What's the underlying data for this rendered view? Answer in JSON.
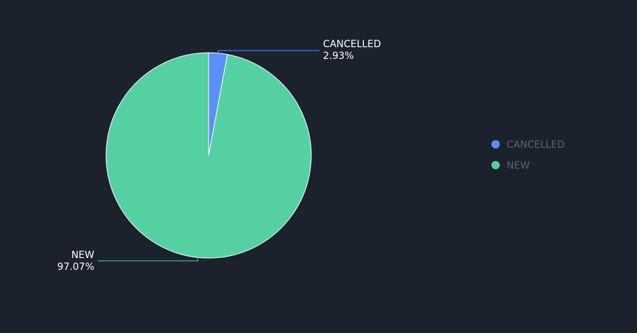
{
  "chart_data": {
    "type": "pie",
    "title": "",
    "categories": [
      "CANCELLED",
      "NEW"
    ],
    "values": [
      2.93,
      97.07
    ],
    "labels": [
      "2.93%",
      "97.07%"
    ],
    "colors": [
      "#5b8ff9",
      "#55d0a2"
    ],
    "legend": {
      "placement": "right",
      "items": [
        "CANCELLED",
        "NEW"
      ]
    },
    "slice_border_color": "#ffffff"
  }
}
